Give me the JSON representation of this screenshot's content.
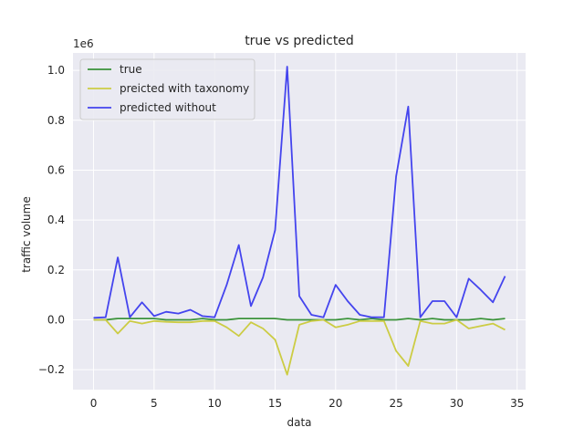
{
  "chart_data": {
    "type": "line",
    "title": "true vs predicted",
    "xlabel": "data",
    "ylabel": "traffic volume",
    "y_offset_label": "1e6",
    "xlim": [
      -1.7,
      35.7
    ],
    "ylim": [
      -0.28,
      1.07
    ],
    "x_ticks": [
      0,
      5,
      10,
      15,
      20,
      25,
      30,
      35
    ],
    "y_ticks": [
      -0.2,
      0.0,
      0.2,
      0.4,
      0.6,
      0.8,
      1.0
    ],
    "y_tick_labels": [
      "−0.2",
      "0.0",
      "0.2",
      "0.4",
      "0.6",
      "0.8",
      "1.0"
    ],
    "grid": true,
    "legend_position": "top-left",
    "x": [
      0,
      1,
      2,
      3,
      4,
      5,
      6,
      7,
      8,
      9,
      10,
      11,
      12,
      13,
      14,
      15,
      16,
      17,
      18,
      19,
      20,
      21,
      22,
      23,
      24,
      25,
      26,
      27,
      28,
      29,
      30,
      31,
      32,
      33,
      34
    ],
    "series": [
      {
        "name": "true",
        "color": "#3a923a",
        "values": [
          0.0,
          0.0,
          0.005,
          0.005,
          0.005,
          0.005,
          0.0,
          0.0,
          0.0,
          0.005,
          0.0,
          0.0,
          0.005,
          0.005,
          0.005,
          0.005,
          0.0,
          0.0,
          0.0,
          0.0,
          0.0,
          0.005,
          0.0,
          0.005,
          0.0,
          0.0,
          0.005,
          0.0,
          0.005,
          0.0,
          0.0,
          0.0,
          0.005,
          0.0,
          0.005
        ]
      },
      {
        "name": "preicted with taxonomy",
        "color": "#cccc44",
        "values": [
          0.0,
          0.0,
          -0.055,
          -0.005,
          -0.015,
          -0.005,
          -0.008,
          -0.01,
          -0.01,
          -0.005,
          -0.005,
          -0.03,
          -0.065,
          -0.01,
          -0.035,
          -0.08,
          -0.22,
          -0.02,
          -0.005,
          0.0,
          -0.03,
          -0.02,
          -0.005,
          -0.005,
          -0.005,
          -0.125,
          -0.185,
          -0.005,
          -0.015,
          -0.015,
          0.0,
          -0.035,
          -0.025,
          -0.015,
          -0.04
        ]
      },
      {
        "name": "predicted without",
        "color": "#4444ee",
        "values": [
          0.008,
          0.01,
          0.25,
          0.01,
          0.07,
          0.015,
          0.032,
          0.025,
          0.04,
          0.015,
          0.01,
          0.14,
          0.3,
          0.055,
          0.17,
          0.36,
          1.015,
          0.095,
          0.02,
          0.01,
          0.14,
          0.075,
          0.02,
          0.01,
          0.01,
          0.575,
          0.855,
          0.01,
          0.075,
          0.075,
          0.01,
          0.165,
          0.12,
          0.07,
          0.175
        ]
      }
    ]
  }
}
